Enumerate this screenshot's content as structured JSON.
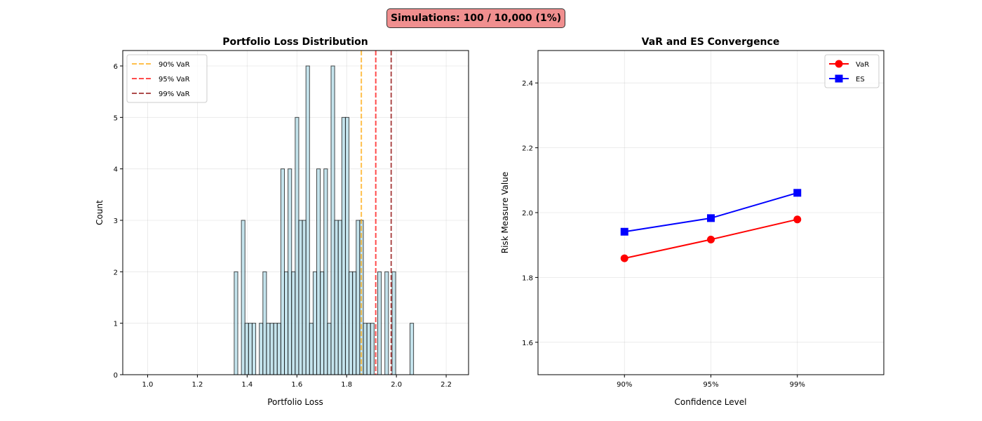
{
  "header": {
    "simulations_label": "Simulations: 100 / 10,000 (1%)",
    "completed": 100,
    "total": 10000,
    "progress_percent": 1,
    "badge_color": "#f08f8f"
  },
  "chart_data": [
    {
      "type": "bar",
      "title": "Portfolio Loss Distribution",
      "xlabel": "Portfolio Loss",
      "ylabel": "Count",
      "xlim": [
        0.9,
        2.29
      ],
      "ylim": [
        0,
        6.3
      ],
      "xticks": [
        1.0,
        1.2,
        1.4,
        1.6,
        1.8,
        2.0,
        2.2
      ],
      "xtick_labels": [
        "1.0",
        "1.2",
        "1.4",
        "1.6",
        "1.8",
        "2.0",
        "2.2"
      ],
      "yticks": [
        0,
        1,
        2,
        3,
        4,
        5,
        6
      ],
      "ytick_labels": [
        "0",
        "1",
        "2",
        "3",
        "4",
        "5",
        "6"
      ],
      "grid": true,
      "bar_color": "#add8e6",
      "bar_edge": "#000000",
      "bin_start": 1.348,
      "bin_width": 0.01442,
      "counts": [
        2,
        0,
        3,
        1,
        1,
        1,
        0,
        1,
        2,
        1,
        1,
        1,
        1,
        4,
        2,
        4,
        2,
        5,
        3,
        3,
        6,
        1,
        2,
        4,
        2,
        4,
        1,
        6,
        3,
        3,
        5,
        5,
        2,
        2,
        3,
        3,
        1,
        1,
        1,
        0,
        2,
        0,
        2,
        0,
        2,
        0,
        0,
        0,
        0,
        1
      ],
      "vlines": [
        {
          "label": "90% VaR",
          "x": 1.859,
          "color": "#ffa500"
        },
        {
          "label": "95% VaR",
          "x": 1.917,
          "color": "#ff0000"
        },
        {
          "label": "99% VaR",
          "x": 1.979,
          "color": "#8b0000"
        }
      ],
      "legend": [
        "90% VaR",
        "95% VaR",
        "99% VaR"
      ],
      "legend_position": "top-left"
    },
    {
      "type": "line",
      "title": "VaR and ES Convergence",
      "xlabel": "Confidence Level",
      "ylabel": "Risk Measure Value",
      "categories": [
        "90%",
        "95%",
        "99%"
      ],
      "xlim": [
        -1,
        3
      ],
      "ylim": [
        1.5,
        2.5
      ],
      "yticks": [
        1.6,
        1.8,
        2.0,
        2.2,
        2.4
      ],
      "ytick_labels": [
        "1.6",
        "1.8",
        "2.0",
        "2.2",
        "2.4"
      ],
      "grid": true,
      "series": [
        {
          "name": "VaR",
          "values": [
            1.859,
            1.917,
            1.979
          ],
          "color": "#ff0000",
          "marker": "circle"
        },
        {
          "name": "ES",
          "values": [
            1.941,
            1.983,
            2.061
          ],
          "color": "#0000ff",
          "marker": "square"
        }
      ],
      "legend_position": "top-right"
    }
  ]
}
